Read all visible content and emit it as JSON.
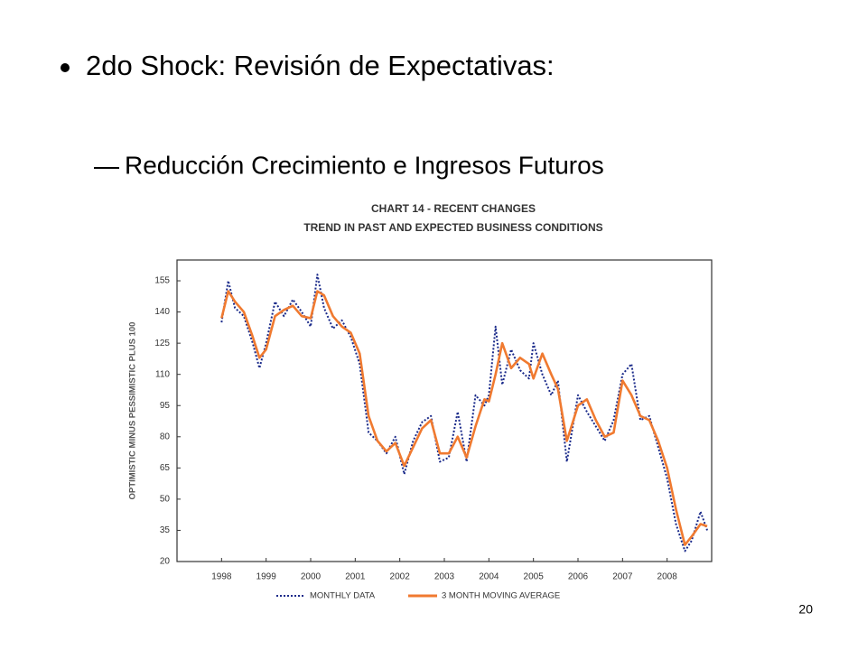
{
  "slide": {
    "bullet": "2do Shock: Revisión de Expectativas:",
    "sub_bullet": "Reducción Crecimiento e Ingresos Futuros",
    "page_number": "20"
  },
  "chart_data": {
    "type": "line",
    "title": "CHART 14 - RECENT CHANGES",
    "subtitle": "TREND IN PAST AND EXPECTED BUSINESS CONDITIONS",
    "y_label": "OPTIMISTIC MINUS PESSIMISTIC PLUS 100",
    "x": [
      1998.0,
      1998.15,
      1998.3,
      1998.5,
      1998.7,
      1998.85,
      1999.0,
      1999.2,
      1999.4,
      1999.6,
      1999.8,
      2000.0,
      2000.15,
      2000.3,
      2000.5,
      2000.7,
      2000.9,
      2001.1,
      2001.3,
      2001.5,
      2001.7,
      2001.9,
      2002.1,
      2002.3,
      2002.5,
      2002.7,
      2002.9,
      2003.1,
      2003.3,
      2003.5,
      2003.7,
      2003.9,
      2004.0,
      2004.15,
      2004.3,
      2004.5,
      2004.7,
      2004.9,
      2005.0,
      2005.2,
      2005.4,
      2005.55,
      2005.75,
      2006.0,
      2006.2,
      2006.4,
      2006.6,
      2006.8,
      2007.0,
      2007.2,
      2007.4,
      2007.6,
      2007.8,
      2008.0,
      2008.2,
      2008.4,
      2008.55,
      2008.75,
      2008.9
    ],
    "series": [
      {
        "name": "MONTHLY DATA",
        "color": "#1a2a8a",
        "style": "dotted",
        "values": [
          135,
          155,
          142,
          138,
          125,
          113,
          125,
          145,
          138,
          146,
          140,
          133,
          158,
          142,
          132,
          136,
          128,
          115,
          82,
          78,
          72,
          80,
          62,
          78,
          87,
          90,
          68,
          70,
          92,
          68,
          100,
          95,
          100,
          133,
          105,
          122,
          112,
          108,
          125,
          110,
          100,
          107,
          68,
          100,
          92,
          85,
          78,
          88,
          110,
          115,
          88,
          90,
          75,
          60,
          38,
          25,
          30,
          44,
          35
        ]
      },
      {
        "name": "3 MONTH MOVING AVERAGE",
        "color": "#f07a30",
        "style": "solid",
        "values": [
          137,
          150,
          145,
          140,
          128,
          118,
          122,
          138,
          141,
          143,
          138,
          137,
          150,
          148,
          138,
          133,
          130,
          120,
          90,
          78,
          73,
          77,
          66,
          75,
          84,
          88,
          72,
          72,
          80,
          70,
          85,
          98,
          97,
          110,
          125,
          113,
          118,
          115,
          108,
          120,
          110,
          103,
          78,
          95,
          98,
          88,
          80,
          82,
          107,
          100,
          90,
          88,
          78,
          65,
          45,
          28,
          32,
          38,
          37
        ]
      }
    ],
    "xlim": [
      1997,
      2009
    ],
    "xticks": [
      1998,
      1999,
      2000,
      2001,
      2002,
      2003,
      2004,
      2005,
      2006,
      2007,
      2008
    ],
    "ylim": [
      20,
      165
    ],
    "yticks": [
      20,
      35,
      50,
      65,
      80,
      95,
      110,
      125,
      140,
      155
    ],
    "grid": false,
    "legend": "bottom"
  }
}
